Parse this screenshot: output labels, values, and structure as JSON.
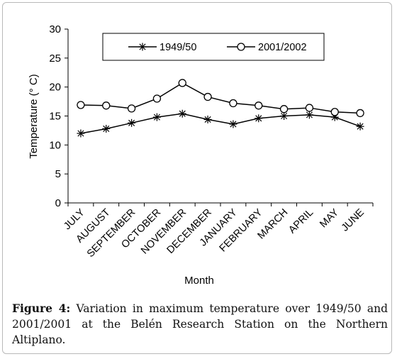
{
  "chart_data": {
    "type": "line",
    "categories": [
      "JULY",
      "AUGUST",
      "SEPTEMBER",
      "OCTOBER",
      "NOVEMBER",
      "DECEMBER",
      "JANUARY",
      "FEBRUARY",
      "MARCH",
      "APRIL",
      "MAY",
      "JUNE"
    ],
    "series": [
      {
        "name": "1949/50",
        "marker": "star",
        "values": [
          12.0,
          12.8,
          13.8,
          14.8,
          15.4,
          14.4,
          13.6,
          14.6,
          15.0,
          15.2,
          14.8,
          13.2
        ]
      },
      {
        "name": "2001/2002",
        "marker": "circle",
        "values": [
          16.9,
          16.8,
          16.3,
          18.0,
          20.7,
          18.3,
          17.2,
          16.8,
          16.2,
          16.4,
          15.7,
          15.5
        ]
      }
    ],
    "xlabel": "Month",
    "ylabel": "Temperature (° C)",
    "ylim": [
      0,
      30
    ],
    "yticks": [
      "0",
      "5",
      "10",
      "15",
      "20",
      "25",
      "30"
    ],
    "grid": false,
    "legend_position": "top",
    "line_color": "#000000"
  },
  "caption": {
    "label": "Figure 4:",
    "text": " Variation in maximum temperature over 1949/50 and 2001/2001 at the Belén Research Station on the Northern Altiplano."
  }
}
